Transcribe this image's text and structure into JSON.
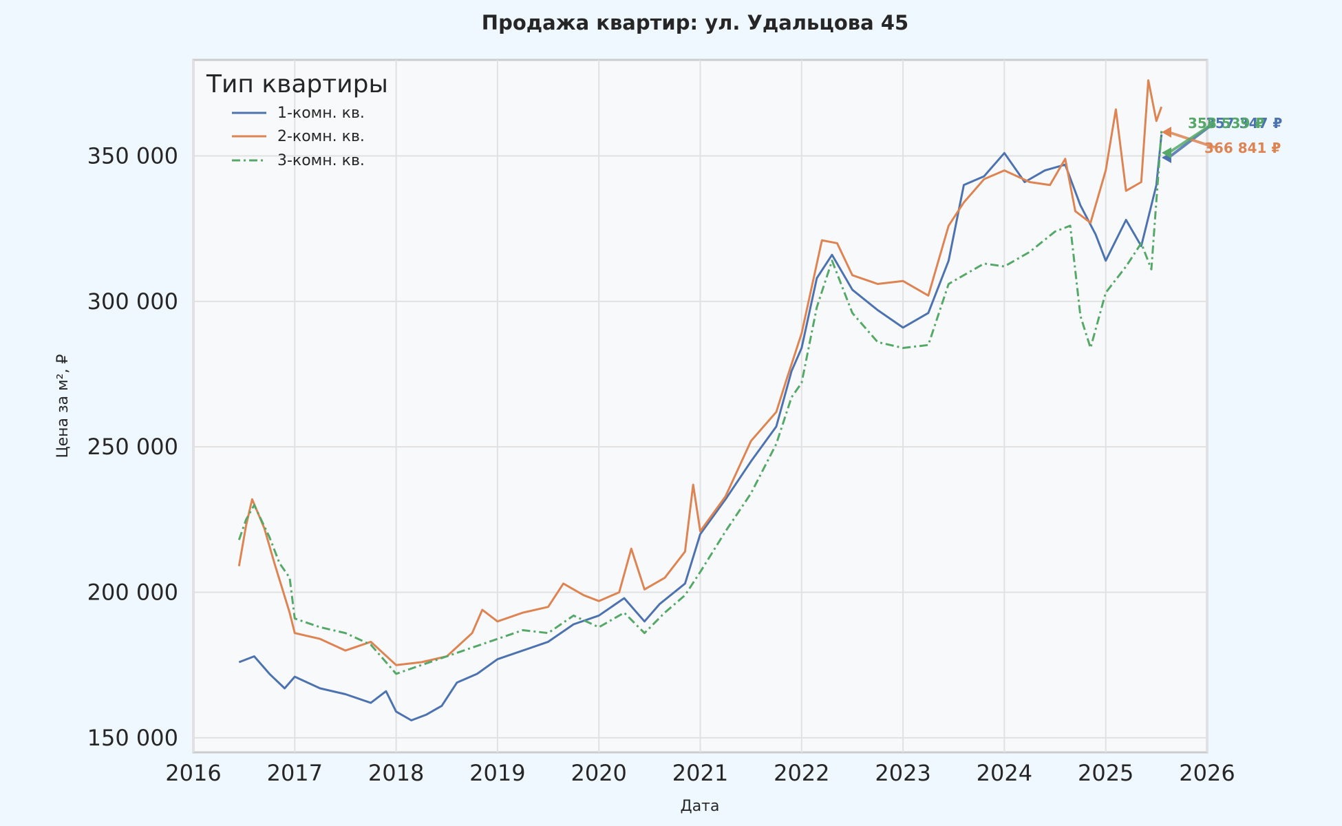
{
  "chart_data": {
    "type": "line",
    "title": "Продажа квартир: ул. Удальцова 45",
    "xlabel": "Дата",
    "ylabel": "Цена за м², ₽",
    "xlim": [
      2016,
      2026
    ],
    "ylim": [
      145000,
      383000
    ],
    "x_ticks": [
      "2016",
      "2017",
      "2018",
      "2019",
      "2020",
      "2021",
      "2022",
      "2023",
      "2024",
      "2025",
      "2026"
    ],
    "y_ticks": [
      {
        "value": 150000,
        "label": "150 000"
      },
      {
        "value": 200000,
        "label": "200 000"
      },
      {
        "value": 250000,
        "label": "250 000"
      },
      {
        "value": 300000,
        "label": "300 000"
      },
      {
        "value": 350000,
        "label": "350 000"
      }
    ],
    "grid": true,
    "legend": {
      "title": "Тип квартиры",
      "position": "top-left"
    },
    "series": [
      {
        "name": "1-комн. кв.",
        "color": "#4c72b0",
        "style": "solid",
        "end_label": "357 347 ₽",
        "points": [
          [
            2016.45,
            176000
          ],
          [
            2016.6,
            178000
          ],
          [
            2016.75,
            172000
          ],
          [
            2016.9,
            167000
          ],
          [
            2017.0,
            171000
          ],
          [
            2017.25,
            167000
          ],
          [
            2017.5,
            165000
          ],
          [
            2017.75,
            162000
          ],
          [
            2017.9,
            166000
          ],
          [
            2018.0,
            159000
          ],
          [
            2018.15,
            156000
          ],
          [
            2018.3,
            158000
          ],
          [
            2018.45,
            161000
          ],
          [
            2018.6,
            169000
          ],
          [
            2018.8,
            172000
          ],
          [
            2019.0,
            177000
          ],
          [
            2019.25,
            180000
          ],
          [
            2019.5,
            183000
          ],
          [
            2019.75,
            189000
          ],
          [
            2020.0,
            192000
          ],
          [
            2020.25,
            198000
          ],
          [
            2020.45,
            190000
          ],
          [
            2020.6,
            196000
          ],
          [
            2020.85,
            203000
          ],
          [
            2021.0,
            220000
          ],
          [
            2021.25,
            232000
          ],
          [
            2021.5,
            245000
          ],
          [
            2021.75,
            257000
          ],
          [
            2021.9,
            276000
          ],
          [
            2022.0,
            284000
          ],
          [
            2022.15,
            308000
          ],
          [
            2022.3,
            316000
          ],
          [
            2022.5,
            304000
          ],
          [
            2022.75,
            297000
          ],
          [
            2023.0,
            291000
          ],
          [
            2023.25,
            296000
          ],
          [
            2023.45,
            314000
          ],
          [
            2023.6,
            340000
          ],
          [
            2023.8,
            343000
          ],
          [
            2024.0,
            351000
          ],
          [
            2024.2,
            341000
          ],
          [
            2024.4,
            345000
          ],
          [
            2024.6,
            347000
          ],
          [
            2024.75,
            333000
          ],
          [
            2024.9,
            323000
          ],
          [
            2025.0,
            314000
          ],
          [
            2025.2,
            328000
          ],
          [
            2025.35,
            319000
          ],
          [
            2025.5,
            340000
          ],
          [
            2025.55,
            357347
          ]
        ]
      },
      {
        "name": "2-комн. кв.",
        "color": "#dd8452",
        "style": "solid",
        "end_label": "366 841 ₽",
        "points": [
          [
            2016.45,
            209000
          ],
          [
            2016.52,
            223000
          ],
          [
            2016.58,
            232000
          ],
          [
            2016.7,
            222000
          ],
          [
            2016.8,
            210000
          ],
          [
            2016.95,
            193000
          ],
          [
            2017.0,
            186000
          ],
          [
            2017.25,
            184000
          ],
          [
            2017.5,
            180000
          ],
          [
            2017.75,
            183000
          ],
          [
            2018.0,
            175000
          ],
          [
            2018.25,
            176000
          ],
          [
            2018.5,
            178000
          ],
          [
            2018.75,
            186000
          ],
          [
            2018.85,
            194000
          ],
          [
            2019.0,
            190000
          ],
          [
            2019.25,
            193000
          ],
          [
            2019.5,
            195000
          ],
          [
            2019.65,
            203000
          ],
          [
            2019.85,
            199000
          ],
          [
            2020.0,
            197000
          ],
          [
            2020.2,
            200000
          ],
          [
            2020.32,
            215000
          ],
          [
            2020.45,
            201000
          ],
          [
            2020.65,
            205000
          ],
          [
            2020.85,
            214000
          ],
          [
            2020.93,
            237000
          ],
          [
            2021.0,
            221000
          ],
          [
            2021.25,
            233000
          ],
          [
            2021.5,
            252000
          ],
          [
            2021.75,
            262000
          ],
          [
            2021.85,
            273000
          ],
          [
            2022.0,
            289000
          ],
          [
            2022.2,
            321000
          ],
          [
            2022.35,
            320000
          ],
          [
            2022.5,
            309000
          ],
          [
            2022.75,
            306000
          ],
          [
            2023.0,
            307000
          ],
          [
            2023.25,
            302000
          ],
          [
            2023.45,
            326000
          ],
          [
            2023.6,
            334000
          ],
          [
            2023.8,
            342000
          ],
          [
            2024.0,
            345000
          ],
          [
            2024.25,
            341000
          ],
          [
            2024.45,
            340000
          ],
          [
            2024.6,
            349000
          ],
          [
            2024.7,
            331000
          ],
          [
            2024.85,
            327000
          ],
          [
            2025.0,
            345000
          ],
          [
            2025.1,
            366000
          ],
          [
            2025.2,
            338000
          ],
          [
            2025.35,
            341000
          ],
          [
            2025.42,
            376000
          ],
          [
            2025.5,
            362000
          ],
          [
            2025.55,
            366841
          ]
        ]
      },
      {
        "name": "3-комн. кв.",
        "color": "#55a868",
        "style": "dashdot",
        "end_label": "358 539 ₽",
        "points": [
          [
            2016.45,
            218000
          ],
          [
            2016.52,
            225000
          ],
          [
            2016.6,
            230000
          ],
          [
            2016.75,
            219000
          ],
          [
            2016.85,
            210000
          ],
          [
            2016.95,
            205000
          ],
          [
            2017.0,
            191000
          ],
          [
            2017.25,
            188000
          ],
          [
            2017.5,
            186000
          ],
          [
            2017.75,
            182000
          ],
          [
            2018.0,
            172000
          ],
          [
            2018.25,
            175000
          ],
          [
            2018.5,
            178000
          ],
          [
            2018.75,
            181000
          ],
          [
            2019.0,
            184000
          ],
          [
            2019.25,
            187000
          ],
          [
            2019.5,
            186000
          ],
          [
            2019.75,
            192000
          ],
          [
            2020.0,
            188000
          ],
          [
            2020.25,
            193000
          ],
          [
            2020.45,
            186000
          ],
          [
            2020.65,
            193000
          ],
          [
            2020.85,
            199000
          ],
          [
            2021.0,
            207000
          ],
          [
            2021.25,
            221000
          ],
          [
            2021.5,
            234000
          ],
          [
            2021.75,
            251000
          ],
          [
            2021.9,
            267000
          ],
          [
            2022.0,
            272000
          ],
          [
            2022.15,
            298000
          ],
          [
            2022.3,
            314000
          ],
          [
            2022.5,
            296000
          ],
          [
            2022.75,
            286000
          ],
          [
            2023.0,
            284000
          ],
          [
            2023.25,
            285000
          ],
          [
            2023.45,
            306000
          ],
          [
            2023.6,
            309000
          ],
          [
            2023.8,
            313000
          ],
          [
            2024.0,
            312000
          ],
          [
            2024.25,
            317000
          ],
          [
            2024.5,
            324000
          ],
          [
            2024.65,
            326000
          ],
          [
            2024.75,
            295000
          ],
          [
            2024.85,
            284000
          ],
          [
            2025.0,
            303000
          ],
          [
            2025.2,
            312000
          ],
          [
            2025.35,
            320000
          ],
          [
            2025.45,
            311000
          ],
          [
            2025.55,
            358539
          ]
        ]
      }
    ]
  }
}
